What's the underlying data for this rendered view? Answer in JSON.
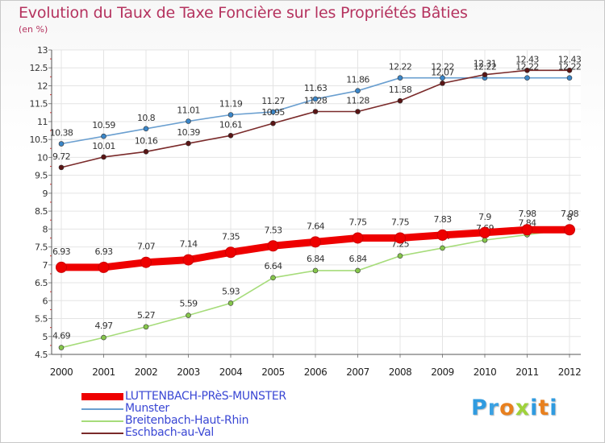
{
  "page": {
    "title": "Evolution du Taux de Taxe Foncière sur les Propriétés Bâties",
    "subtitle": "(en %)"
  },
  "logo": {
    "letters": [
      {
        "ch": "P",
        "color": "#2f9be0"
      },
      {
        "ch": "r",
        "color": "#3aa1e3"
      },
      {
        "ch": "o",
        "color": "#e8801e"
      },
      {
        "ch": "x",
        "color": "#9fd23b"
      },
      {
        "ch": "i",
        "color": "#2f9be0"
      },
      {
        "ch": "t",
        "color": "#e8801e"
      },
      {
        "ch": "i",
        "color": "#2f9be0"
      }
    ]
  },
  "chart_data": {
    "type": "line",
    "title": "Evolution du Taux de Taxe Foncière sur les Propriétés Bâties",
    "ylabel": "(en %)",
    "xlabel": "",
    "ylim": [
      4.5,
      13
    ],
    "yticks": [
      "4.5",
      "5",
      "5.5",
      "6",
      "6.5",
      "7",
      "7.5",
      "8",
      "8.5",
      "9",
      "9.5",
      "10",
      "10.5",
      "11",
      "11.5",
      "12",
      "12.5",
      "13"
    ],
    "grid": true,
    "legend_position": "bottom-left",
    "categories": [
      "2000",
      "2001",
      "2002",
      "2003",
      "2004",
      "2005",
      "2006",
      "2007",
      "2008",
      "2009",
      "2010",
      "2011",
      "2012"
    ],
    "series": [
      {
        "name": "Munster",
        "color": "#6a9fd0",
        "marker": "#3b86c8",
        "weight": "thin",
        "values": [
          10.38,
          10.59,
          10.8,
          11.01,
          11.19,
          11.27,
          11.63,
          11.86,
          12.22,
          12.22,
          12.22,
          12.22,
          12.22
        ],
        "labels": [
          "10.38",
          "10.59",
          "10.8",
          "11.01",
          "11.19",
          "11.27",
          "11.63",
          "11.86",
          "12.22",
          "12.22",
          "12.22",
          "12.22",
          "12.22"
        ]
      },
      {
        "name": "Eschbach-au-Val",
        "color": "#7a2a2a",
        "marker": "#5a1515",
        "weight": "thin",
        "values": [
          9.72,
          10.01,
          10.16,
          10.39,
          10.61,
          10.95,
          11.28,
          11.28,
          11.58,
          12.07,
          12.31,
          12.43,
          12.43
        ],
        "labels": [
          "9.72",
          "10.01",
          "10.16",
          "10.39",
          "10.61",
          "10.95",
          "11.28",
          "11.28",
          "11.58",
          "12.07",
          "12.31",
          "12.43",
          "12.43"
        ]
      },
      {
        "name": "Breitenbach-Haut-Rhin",
        "color": "#a6dc7a",
        "marker": "#86c64c",
        "weight": "thin",
        "values": [
          4.69,
          4.97,
          5.27,
          5.59,
          5.93,
          6.64,
          6.84,
          6.84,
          7.25,
          7.47,
          7.69,
          7.84,
          8
        ],
        "labels": [
          "4.69",
          "4.97",
          "5.27",
          "5.59",
          "5.93",
          "6.64",
          "6.84",
          "6.84",
          "7.25",
          "7.47",
          "7.69",
          "7.84",
          "8"
        ]
      },
      {
        "name": "LUTTENBACH-PRèS-MUNSTER",
        "color": "#ee0000",
        "marker": "#ee0000",
        "weight": "thick",
        "values": [
          6.93,
          6.93,
          7.07,
          7.14,
          7.35,
          7.53,
          7.64,
          7.75,
          7.75,
          7.83,
          7.9,
          7.98,
          7.98
        ],
        "labels": [
          "6.93",
          "6.93",
          "7.07",
          "7.14",
          "7.35",
          "7.53",
          "7.64",
          "7.75",
          "7.75",
          "7.83",
          "7.9",
          "7.98",
          "7.98"
        ]
      }
    ],
    "legend_order": [
      "LUTTENBACH-PRèS-MUNSTER",
      "Munster",
      "Breitenbach-Haut-Rhin",
      "Eschbach-au-Val"
    ]
  }
}
